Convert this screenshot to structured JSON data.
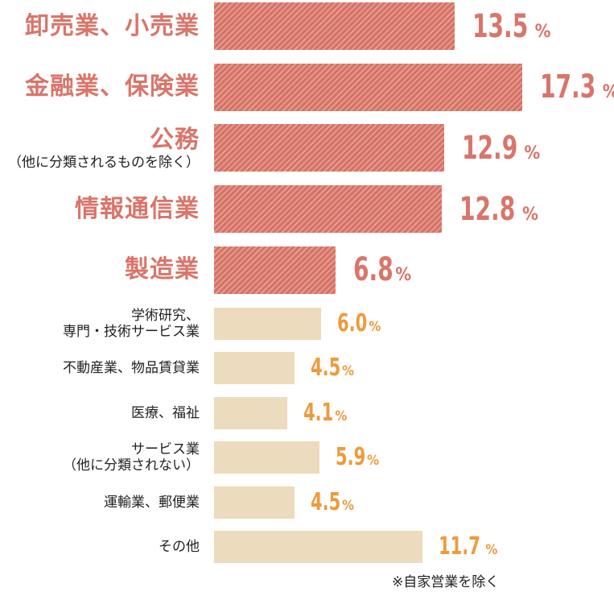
{
  "chart_data": {
    "type": "bar",
    "orientation": "horizontal",
    "unit": "%",
    "categories": [
      [
        "卸売業、小売業"
      ],
      [
        "金融業、保険業"
      ],
      [
        "公務",
        "（他に分類されるものを除く）"
      ],
      [
        "情報通信業"
      ],
      [
        "製造業"
      ],
      [
        "学術研究、",
        "専門・技術サービス業"
      ],
      [
        "不動産業、物品賃貸業"
      ],
      [
        "医療、福祉"
      ],
      [
        "サービス業",
        "（他に分類されない）"
      ],
      [
        "運輸業、郵便業"
      ],
      [
        "その他"
      ]
    ],
    "values": [
      13.5,
      17.3,
      12.9,
      12.8,
      6.8,
      6.0,
      4.5,
      4.1,
      5.9,
      4.5,
      11.7
    ],
    "value_labels": [
      "13.5",
      "17.3",
      "12.9",
      "12.8",
      "6.8",
      "6.0",
      "4.5",
      "4.1",
      "5.9",
      "4.5",
      "11.7"
    ],
    "highlighted": [
      true,
      true,
      true,
      true,
      true,
      false,
      false,
      false,
      false,
      false,
      false
    ],
    "colors": {
      "highlight_bar": "#d77366",
      "highlight_text": "#d9756a",
      "normal_bar": "#ecdbbd",
      "normal_value": "#ee9a3d"
    },
    "xlim": [
      0,
      17.3
    ],
    "grid": false,
    "legend": "none",
    "note": "※自家営業を除く"
  }
}
